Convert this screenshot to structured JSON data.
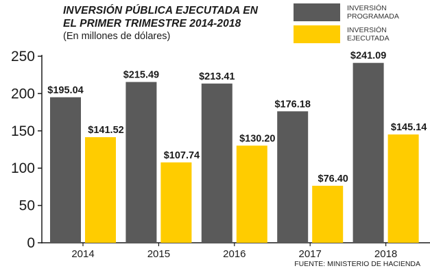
{
  "title_line1": "INVERSIÓN PÚBLICA EJECUTADA EN",
  "title_line2": "EL PRIMER TRIMESTRE 2014-2018",
  "subtitle": "(En millones de dólares)",
  "source": "FUENTE: MINISTERIO DE HACIENDA",
  "legend": [
    {
      "label": "INVERSIÓN\nPROGRAMADA",
      "color": "#5a5a5a"
    },
    {
      "label": "INVERSIÓN\nEJECUTADA",
      "color": "#ffcc00"
    }
  ],
  "chart_data": {
    "type": "bar",
    "title": "INVERSIÓN PÚBLICA EJECUTADA EN EL PRIMER TRIMESTRE 2014-2018",
    "subtitle": "(En millones de dólares)",
    "categories": [
      "2014",
      "2015",
      "2016",
      "2017",
      "2018"
    ],
    "series": [
      {
        "name": "INVERSIÓN PROGRAMADA",
        "color": "#5a5a5a",
        "values": [
          195.04,
          215.49,
          213.41,
          176.18,
          241.09
        ],
        "labels": [
          "$195.04",
          "$215.49",
          "$213.41",
          "$176.18",
          "$241.09"
        ]
      },
      {
        "name": "INVERSIÓN EJECUTADA",
        "color": "#ffcc00",
        "values": [
          141.52,
          107.74,
          130.2,
          76.4,
          145.14
        ],
        "labels": [
          "$141.52",
          "$107.74",
          "$130.20",
          "$76.40",
          "$145.14"
        ]
      }
    ],
    "yticks": [
      0,
      50,
      100,
      150,
      200,
      250
    ],
    "ylim": [
      0,
      250
    ],
    "xlabel": "",
    "ylabel": "",
    "grid": false,
    "legend_position": "top-right"
  }
}
